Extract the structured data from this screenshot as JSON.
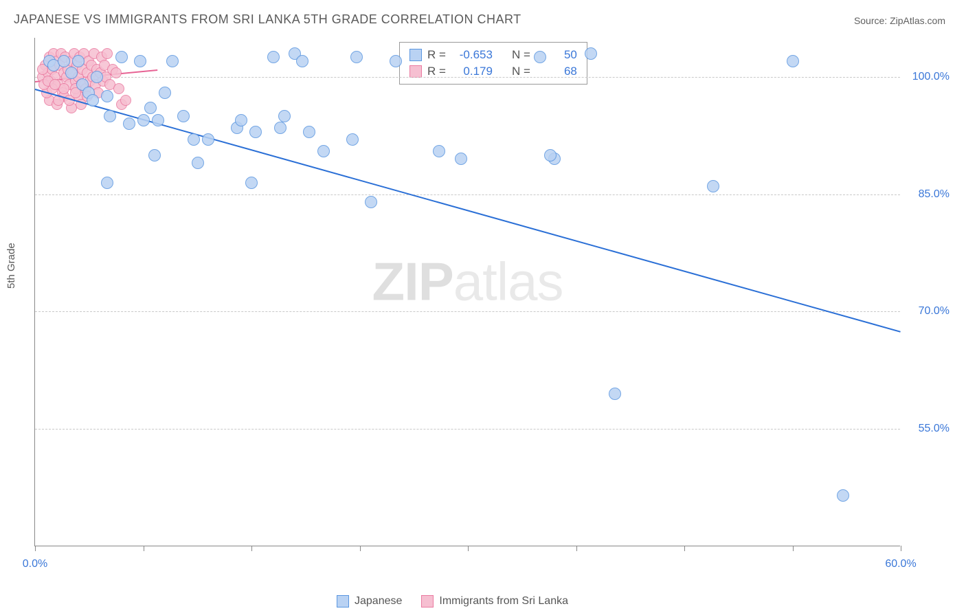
{
  "title": "JAPANESE VS IMMIGRANTS FROM SRI LANKA 5TH GRADE CORRELATION CHART",
  "source_label": "Source: ZipAtlas.com",
  "ylabel": "5th Grade",
  "watermark": {
    "bold": "ZIP",
    "light": "atlas"
  },
  "chart": {
    "type": "scatter",
    "xlim": [
      0,
      60
    ],
    "ylim": [
      40,
      105
    ],
    "x_ticks": [
      0,
      7.5,
      15,
      22.5,
      30,
      37.5,
      45,
      52.5,
      60
    ],
    "x_tick_labels": {
      "0": "0.0%",
      "60": "60.0%"
    },
    "y_gridlines": [
      55,
      70,
      85,
      100
    ],
    "y_tick_labels": {
      "55": "55.0%",
      "70": "70.0%",
      "85": "85.0%",
      "100": "100.0%"
    },
    "background_color": "#ffffff",
    "grid_color": "#c8c8c8",
    "axis_color": "#888888",
    "tick_label_color": "#3a77d8",
    "axis_label_color": "#5a5a5a"
  },
  "series": [
    {
      "name": "Japanese",
      "marker_fill": "#b9d2f3",
      "marker_stroke": "#5a96e0",
      "marker_radius": 9,
      "trend_color": "#2a6fd6",
      "trend_width": 2,
      "R": "-0.653",
      "N": "50",
      "trend_x1": 0,
      "trend_y1": 98.5,
      "trend_x2": 60,
      "trend_y2": 67.5,
      "points": [
        [
          1.0,
          102.0
        ],
        [
          1.3,
          101.5
        ],
        [
          2.0,
          102.0
        ],
        [
          2.5,
          100.5
        ],
        [
          3.0,
          102.0
        ],
        [
          3.3,
          99.0
        ],
        [
          3.7,
          98.0
        ],
        [
          4.0,
          97.0
        ],
        [
          4.3,
          100.0
        ],
        [
          5.0,
          97.5
        ],
        [
          5.2,
          95.0
        ],
        [
          6.0,
          102.5
        ],
        [
          6.5,
          94.0
        ],
        [
          7.3,
          102.0
        ],
        [
          7.5,
          94.5
        ],
        [
          8.0,
          96.0
        ],
        [
          8.3,
          90.0
        ],
        [
          8.5,
          94.5
        ],
        [
          9.0,
          98.0
        ],
        [
          9.5,
          102.0
        ],
        [
          10.3,
          95.0
        ],
        [
          11.0,
          92.0
        ],
        [
          11.3,
          89.0
        ],
        [
          12.0,
          92.0
        ],
        [
          14.0,
          93.5
        ],
        [
          14.3,
          94.5
        ],
        [
          15.0,
          86.5
        ],
        [
          15.3,
          93.0
        ],
        [
          16.5,
          102.5
        ],
        [
          17.0,
          93.5
        ],
        [
          17.3,
          95.0
        ],
        [
          18.0,
          103.0
        ],
        [
          18.5,
          102.0
        ],
        [
          19.0,
          93.0
        ],
        [
          20.0,
          90.5
        ],
        [
          22.0,
          92.0
        ],
        [
          22.3,
          102.5
        ],
        [
          23.3,
          84.0
        ],
        [
          25.0,
          102.0
        ],
        [
          28.0,
          90.5
        ],
        [
          29.5,
          89.5
        ],
        [
          35.0,
          102.5
        ],
        [
          38.5,
          103.0
        ],
        [
          40.2,
          59.5
        ],
        [
          36.0,
          89.5
        ],
        [
          47.0,
          86.0
        ],
        [
          35.7,
          90.0
        ],
        [
          52.5,
          102.0
        ],
        [
          56.0,
          46.5
        ],
        [
          5.0,
          86.5
        ]
      ]
    },
    {
      "name": "Immigrants from Sri Lanka",
      "marker_fill": "#f6bfd1",
      "marker_stroke": "#ea7aa0",
      "marker_radius": 8,
      "trend_color": "#e76394",
      "trend_width": 2,
      "R": "0.179",
      "N": "68",
      "trend_x1": 0,
      "trend_y1": 99.5,
      "trend_x2": 8.5,
      "trend_y2": 101.0,
      "points": [
        [
          0.5,
          100.0
        ],
        [
          0.7,
          101.5
        ],
        [
          0.9,
          100.5
        ],
        [
          1.0,
          102.5
        ],
        [
          1.1,
          99.5
        ],
        [
          1.2,
          101.0
        ],
        [
          1.3,
          103.0
        ],
        [
          1.4,
          100.0
        ],
        [
          1.5,
          102.0
        ],
        [
          1.6,
          99.0
        ],
        [
          1.7,
          101.5
        ],
        [
          1.8,
          103.0
        ],
        [
          1.9,
          98.0
        ],
        [
          2.0,
          100.5
        ],
        [
          2.1,
          102.5
        ],
        [
          2.2,
          100.0
        ],
        [
          2.3,
          101.0
        ],
        [
          2.4,
          99.0
        ],
        [
          2.5,
          102.0
        ],
        [
          2.6,
          100.5
        ],
        [
          2.7,
          103.0
        ],
        [
          2.8,
          99.5
        ],
        [
          2.9,
          101.5
        ],
        [
          3.0,
          100.0
        ],
        [
          3.1,
          102.5
        ],
        [
          3.2,
          99.0
        ],
        [
          3.3,
          101.0
        ],
        [
          3.4,
          103.0
        ],
        [
          3.5,
          98.5
        ],
        [
          3.6,
          100.5
        ],
        [
          3.7,
          102.0
        ],
        [
          3.8,
          99.5
        ],
        [
          3.9,
          101.5
        ],
        [
          4.0,
          100.0
        ],
        [
          4.1,
          103.0
        ],
        [
          4.2,
          99.0
        ],
        [
          4.3,
          101.0
        ],
        [
          4.4,
          98.0
        ],
        [
          4.5,
          100.5
        ],
        [
          4.6,
          102.5
        ],
        [
          4.7,
          99.5
        ],
        [
          4.8,
          101.5
        ],
        [
          4.9,
          100.0
        ],
        [
          5.0,
          103.0
        ],
        [
          5.2,
          99.0
        ],
        [
          5.4,
          101.0
        ],
        [
          5.6,
          100.5
        ],
        [
          5.8,
          98.5
        ],
        [
          6.0,
          96.5
        ],
        [
          1.0,
          97.0
        ],
        [
          1.5,
          96.5
        ],
        [
          2.0,
          97.5
        ],
        [
          2.5,
          96.0
        ],
        [
          3.0,
          97.5
        ],
        [
          2.8,
          98.5
        ],
        [
          0.8,
          98.0
        ],
        [
          1.2,
          98.5
        ],
        [
          1.6,
          97.0
        ],
        [
          2.0,
          98.5
        ],
        [
          2.4,
          97.0
        ],
        [
          2.8,
          98.0
        ],
        [
          3.2,
          96.5
        ],
        [
          3.6,
          97.5
        ],
        [
          0.6,
          99.0
        ],
        [
          0.9,
          99.5
        ],
        [
          1.4,
          99.0
        ],
        [
          6.3,
          97.0
        ],
        [
          0.5,
          101.0
        ]
      ]
    }
  ],
  "stats_box": {
    "R_label": "R =",
    "N_label": "N ="
  },
  "legend": {
    "items": [
      "Japanese",
      "Immigrants from Sri Lanka"
    ]
  }
}
